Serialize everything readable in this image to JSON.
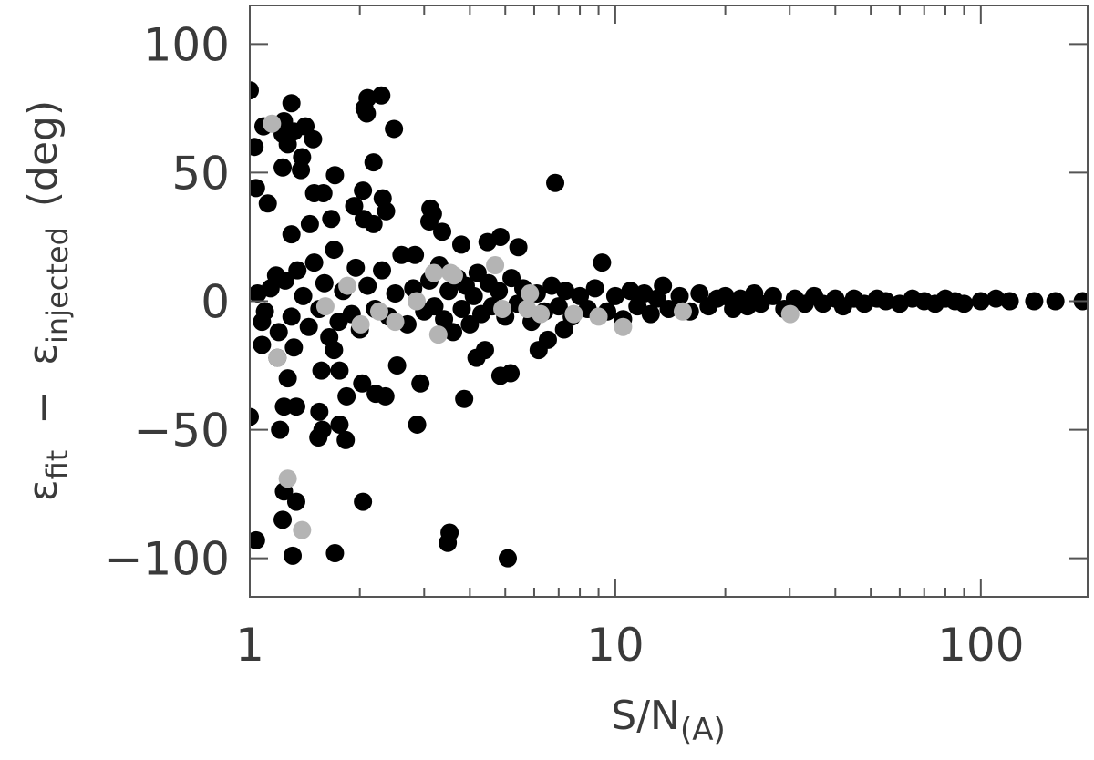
{
  "chart_data": {
    "type": "scatter",
    "xlabel": {
      "text": "S/N",
      "subscript": "(A)"
    },
    "ylabel": {
      "symbol1": "ε",
      "sub1": "fit",
      "minus": "−",
      "symbol2": "ε",
      "sub2": "injected",
      "unit": "(deg)"
    },
    "xscale": "log",
    "xlim": [
      1,
      196
    ],
    "ylim": [
      -115,
      115
    ],
    "xticks": [
      1,
      10,
      100
    ],
    "xminorticks": [
      2,
      3,
      4,
      5,
      6,
      7,
      8,
      9,
      20,
      30,
      40,
      50,
      60,
      70,
      80,
      90
    ],
    "yticks": [
      {
        "value": -100,
        "label": "−100"
      },
      {
        "value": -50,
        "label": "−50"
      },
      0,
      50,
      100
    ],
    "series": [
      {
        "color": "#000000",
        "x": [
          1.0,
          1.03,
          1.04,
          1.0,
          1.04,
          1.09,
          1.12,
          1.23,
          1.24,
          1.3,
          1.27,
          1.32,
          1.42,
          1.49,
          1.39,
          1.38,
          1.23,
          2.1,
          2.29,
          2.06,
          2.09,
          2.48,
          2.18,
          1.71,
          1.5,
          1.59,
          2.04,
          2.31,
          2.36,
          1.93,
          1.67,
          2.18,
          2.05,
          1.46,
          1.3,
          3.1,
          3.12,
          3.17,
          4.85,
          4.47,
          3.36,
          2.83,
          3.79,
          5.43,
          6.85,
          9.2,
          1.08,
          1.19,
          1.27,
          1.32,
          1.57,
          1.7,
          1.76,
          1.84,
          2.03,
          2.21,
          2.35,
          2.53,
          2.93,
          2.87,
          1.55,
          1.58,
          1.54,
          1.76,
          1.83,
          1.21,
          1.24,
          1.34,
          3.86,
          4.85,
          5.17,
          4.17,
          4.4,
          6.17,
          6.54,
          7.24,
          1.24,
          1.23,
          1.34,
          1.31,
          1.71,
          2.04,
          3.52,
          3.48,
          5.08,
          1.05,
          1.08,
          1.1,
          1.14,
          1.18,
          1.2,
          1.25,
          1.3,
          1.35,
          1.4,
          1.45,
          1.5,
          1.55,
          1.6,
          1.65,
          1.7,
          1.75,
          1.8,
          1.9,
          1.95,
          2.0,
          2.1,
          2.2,
          2.3,
          2.4,
          2.5,
          2.6,
          2.7,
          2.8,
          3.0,
          3.1,
          3.2,
          3.3,
          3.4,
          3.5,
          3.6,
          3.7,
          3.8,
          3.9,
          4.0,
          4.1,
          4.2,
          4.3,
          4.5,
          4.6,
          4.8,
          5.0,
          5.2,
          5.4,
          5.6,
          5.9,
          6.1,
          6.4,
          6.7,
          7.0,
          7.3,
          7.6,
          8.0,
          8.4,
          8.8,
          9.5,
          10,
          10.5,
          11,
          11.5,
          12,
          12.5,
          13,
          13.5,
          14,
          15,
          16,
          17,
          18,
          19,
          20,
          21,
          22,
          23,
          24,
          25,
          27,
          29,
          31,
          33,
          35,
          37,
          40,
          42,
          45,
          48,
          52,
          55,
          60,
          65,
          70,
          75,
          80,
          85,
          90,
          100,
          110,
          120,
          140,
          160,
          190
        ],
        "values": [
          82,
          60,
          44,
          -45,
          -93,
          68,
          38,
          65,
          70,
          77,
          61,
          66,
          68,
          63,
          56,
          51,
          52,
          79,
          80,
          75,
          73,
          67,
          54,
          49,
          42,
          42,
          43,
          40,
          35,
          37,
          32,
          30,
          32,
          30,
          26,
          31,
          36,
          34,
          25,
          23,
          27,
          18,
          22,
          21,
          46,
          15,
          -17,
          -22,
          -30,
          -18,
          -27,
          -19,
          -27,
          -37,
          -32,
          -36,
          -37,
          -25,
          -32,
          -48,
          -43,
          -50,
          -53,
          -48,
          -54,
          -50,
          -41,
          -41,
          -38,
          -29,
          -28,
          -22,
          -19,
          -19,
          -15,
          -11,
          -74,
          -85,
          -78,
          -99,
          -98,
          -78,
          -90,
          -94,
          -100,
          3,
          -8,
          -4,
          5,
          10,
          -12,
          8,
          -6,
          12,
          2,
          -10,
          15,
          -3,
          7,
          -14,
          20,
          -8,
          4,
          -5,
          13,
          -11,
          6,
          -3,
          12,
          -6,
          3,
          18,
          -9,
          5,
          -4,
          8,
          -2,
          14,
          -7,
          4,
          -12,
          9,
          -3,
          6,
          -9,
          2,
          11,
          -5,
          7,
          -2,
          4,
          -6,
          9,
          -1,
          5,
          -8,
          3,
          -4,
          6,
          -2,
          4,
          -6,
          2,
          -3,
          5,
          -4,
          2,
          -7,
          4,
          -2,
          3,
          -5,
          1,
          6,
          -3,
          2,
          -4,
          3,
          -2,
          1,
          2,
          -3,
          1,
          -2,
          3,
          -1,
          2,
          -3,
          1,
          -1,
          2,
          -1,
          1,
          -2,
          1,
          -1,
          1,
          0,
          -1,
          1,
          0,
          -1,
          1,
          0,
          -1,
          0,
          1,
          0,
          0,
          0,
          0
        ]
      },
      {
        "color": "#b4b4b4",
        "x": [
          1.15,
          1.19,
          1.27,
          1.39,
          1.61,
          1.85,
          2.01,
          2.26,
          2.5,
          2.86,
          3.19,
          3.28,
          3.54,
          3.62,
          4.69,
          4.91,
          5.74,
          5.84,
          6.25,
          7.7,
          9.0,
          10.5,
          15.3,
          30.1
        ],
        "values": [
          69,
          -22,
          -69,
          -89,
          -2,
          6,
          -9,
          -4,
          -8,
          0,
          11,
          -13,
          11,
          10,
          14,
          -3,
          -3,
          3,
          -5,
          -5,
          -6,
          -10,
          -4,
          -5
        ]
      }
    ]
  }
}
